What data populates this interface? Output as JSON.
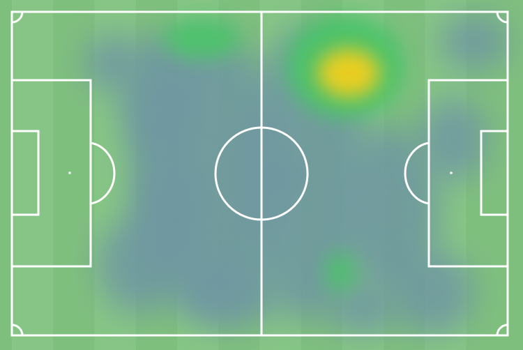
{
  "pitch": {
    "colors": {
      "grass": "#7fbf7e",
      "grass_stripe": "#86c585",
      "lines": "#ffffff",
      "heat_low": "#6f97a2",
      "heat_mid": "#4cc36a",
      "heat_high": "#f2cf1e"
    }
  }
}
